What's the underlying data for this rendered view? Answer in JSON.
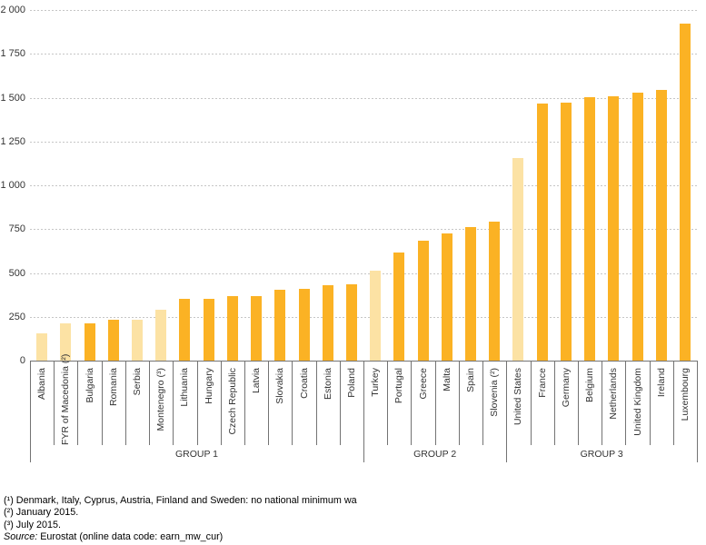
{
  "chart_data": {
    "type": "bar",
    "title": "",
    "ylim": [
      0,
      2000
    ],
    "ytick_interval": 250,
    "ytick_labels": [
      "0",
      "250",
      "500",
      "750",
      "1 000",
      "1 250",
      "1 500",
      "1 750",
      "2 000"
    ],
    "grid": "dashed-horizontal",
    "legend": "none",
    "bar_shades": {
      "dark": "EU member states",
      "light": "non-EU countries"
    },
    "groups": [
      {
        "label": "GROUP 1",
        "bars": [
          {
            "country": "Albania",
            "value": 158,
            "shade": "light"
          },
          {
            "country": "FYR of Macedonia (²)",
            "value": 213,
            "shade": "light"
          },
          {
            "country": "Bulgaria",
            "value": 215,
            "shade": "dark"
          },
          {
            "country": "Romania",
            "value": 232,
            "shade": "dark"
          },
          {
            "country": "Serbia",
            "value": 235,
            "shade": "light"
          },
          {
            "country": "Montenegro (³)",
            "value": 288,
            "shade": "light"
          },
          {
            "country": "Lithuania",
            "value": 350,
            "shade": "dark"
          },
          {
            "country": "Hungary",
            "value": 351,
            "shade": "dark"
          },
          {
            "country": "Czech Republic",
            "value": 366,
            "shade": "dark"
          },
          {
            "country": "Latvia",
            "value": 370,
            "shade": "dark"
          },
          {
            "country": "Slovakia",
            "value": 405,
            "shade": "dark"
          },
          {
            "country": "Croatia",
            "value": 408,
            "shade": "dark"
          },
          {
            "country": "Estonia",
            "value": 430,
            "shade": "dark"
          },
          {
            "country": "Poland",
            "value": 433,
            "shade": "dark"
          }
        ]
      },
      {
        "label": "GROUP 2",
        "bars": [
          {
            "country": "Turkey",
            "value": 515,
            "shade": "light"
          },
          {
            "country": "Portugal",
            "value": 618,
            "shade": "dark"
          },
          {
            "country": "Greece",
            "value": 684,
            "shade": "dark"
          },
          {
            "country": "Malta",
            "value": 728,
            "shade": "dark"
          },
          {
            "country": "Spain",
            "value": 764,
            "shade": "dark"
          },
          {
            "country": "Slovenia (²)",
            "value": 791,
            "shade": "dark"
          }
        ]
      },
      {
        "label": "GROUP 3",
        "bars": [
          {
            "country": "United States",
            "value": 1157,
            "shade": "light"
          },
          {
            "country": "France",
            "value": 1467,
            "shade": "dark"
          },
          {
            "country": "Germany",
            "value": 1473,
            "shade": "dark"
          },
          {
            "country": "Belgium",
            "value": 1502,
            "shade": "dark"
          },
          {
            "country": "Netherlands",
            "value": 1508,
            "shade": "dark"
          },
          {
            "country": "United Kingdom",
            "value": 1529,
            "shade": "dark"
          },
          {
            "country": "Ireland",
            "value": 1546,
            "shade": "dark"
          },
          {
            "country": "Luxembourg",
            "value": 1923,
            "shade": "dark"
          }
        ]
      }
    ]
  },
  "colors": {
    "bar_dark": "#FBB224",
    "bar_light": "#FCE2A4",
    "gridline": "#C6C6C6",
    "axis_and_borders": "#737373",
    "text": "#333333"
  },
  "footnotes": [
    "(¹) Denmark, Italy, Cyprus, Austria, Finland and Sweden: no national minimum wa",
    "(²) January 2015.",
    "(³) July 2015."
  ],
  "source": {
    "label": "Source:",
    "text": " Eurostat (online data code: earn_mw_cur)"
  }
}
